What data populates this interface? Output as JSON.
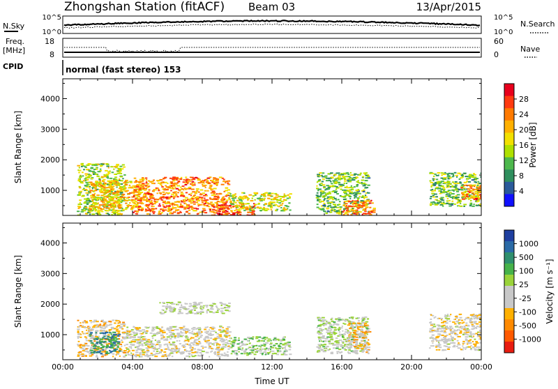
{
  "header": {
    "station": "Zhongshan Station (fitACF)",
    "beam": "Beam 03",
    "date": "13/Apr/2015"
  },
  "top_panels": {
    "nsky_label": "N.Sky",
    "nsearch_label": "N.Search",
    "nsky_ticks": [
      "10^5",
      "10^0"
    ],
    "nsky_right_ticks": [
      "10^5",
      "10^0"
    ],
    "freq_label": "Freq.",
    "freq_unit": "[MHz]",
    "freq_ticks": [
      "18",
      "8"
    ],
    "nave_label": "Nave",
    "nave_ticks": [
      "60",
      "0"
    ],
    "cpid_label": "CPID",
    "cpid_text": "normal (fast stereo) 153"
  },
  "power_colorbar": {
    "label": "Power [dB]",
    "ticks": [
      "28",
      "24",
      "20",
      "16",
      "12",
      "8",
      "4"
    ],
    "colors": [
      "#e8001c",
      "#ff3a10",
      "#ff7a00",
      "#ffb000",
      "#f2e000",
      "#aee000",
      "#4db84d",
      "#2f8f5e",
      "#2a5a9a",
      "#1010ff"
    ]
  },
  "velocity_colorbar": {
    "label": "Velocity [m s⁻¹]",
    "ticks": [
      "1000",
      "500",
      "100",
      "25",
      "-25",
      "-100",
      "-500",
      "-1000"
    ],
    "colors": [
      "#1f3fa0",
      "#2a6aa6",
      "#2f8f6e",
      "#46b24a",
      "#9ad33a",
      "#c8c8c8",
      "#c8c8c8",
      "#ffb000",
      "#ff8a00",
      "#ff5a00",
      "#e81c10"
    ]
  },
  "chart_data": [
    {
      "type": "heatmap",
      "title": "",
      "ylabel": "Slant Range [km]",
      "xlabel": "",
      "variable": "power",
      "xlim": [
        0,
        24
      ],
      "ylim": [
        180,
        4650
      ],
      "yticks": [
        "4000",
        "3000",
        "2000",
        "1000"
      ],
      "regions": [
        {
          "x": [
            0.8,
            3.5
          ],
          "y": [
            200,
            1900
          ],
          "value": 14
        },
        {
          "x": [
            1.5,
            4.5
          ],
          "y": [
            350,
            1350
          ],
          "value": 20
        },
        {
          "x": [
            4.0,
            9.5
          ],
          "y": [
            250,
            1450
          ],
          "value": 24
        },
        {
          "x": [
            8.5,
            11.0
          ],
          "y": [
            200,
            600
          ],
          "value": 28
        },
        {
          "x": [
            9.5,
            13.0
          ],
          "y": [
            350,
            950
          ],
          "value": 16
        },
        {
          "x": [
            14.5,
            17.5
          ],
          "y": [
            250,
            1600
          ],
          "value": 12
        },
        {
          "x": [
            16.0,
            17.8
          ],
          "y": [
            200,
            700
          ],
          "value": 26
        },
        {
          "x": [
            21.0,
            24.0
          ],
          "y": [
            500,
            1600
          ],
          "value": 12
        },
        {
          "x": [
            22.8,
            24.0
          ],
          "y": [
            700,
            1200
          ],
          "value": 24
        }
      ]
    },
    {
      "type": "heatmap",
      "title": "",
      "ylabel": "Slant Range [km]",
      "xlabel": "Time UT",
      "variable": "velocity",
      "xlim": [
        0,
        24
      ],
      "ylim": [
        180,
        4650
      ],
      "yticks": [
        "4000",
        "3000",
        "2000",
        "1000"
      ],
      "xticks": [
        "00:00",
        "04:00",
        "08:00",
        "12:00",
        "16:00",
        "20:00",
        "00:00"
      ],
      "regions": [
        {
          "x": [
            0.8,
            3.5
          ],
          "y": [
            300,
            1500
          ],
          "value": -300
        },
        {
          "x": [
            1.5,
            3.2
          ],
          "y": [
            400,
            1100
          ],
          "value": 600
        },
        {
          "x": [
            3.5,
            9.5
          ],
          "y": [
            300,
            1300
          ],
          "value": -120
        },
        {
          "x": [
            5.5,
            9.5
          ],
          "y": [
            1700,
            2100
          ],
          "value": 0
        },
        {
          "x": [
            9.5,
            13.0
          ],
          "y": [
            350,
            950
          ],
          "value": 150
        },
        {
          "x": [
            14.5,
            17.5
          ],
          "y": [
            400,
            1600
          ],
          "value": 60
        },
        {
          "x": [
            16.3,
            17.5
          ],
          "y": [
            400,
            1400
          ],
          "value": -300
        },
        {
          "x": [
            21.0,
            24.0
          ],
          "y": [
            500,
            1700
          ],
          "value": -150
        }
      ]
    }
  ]
}
